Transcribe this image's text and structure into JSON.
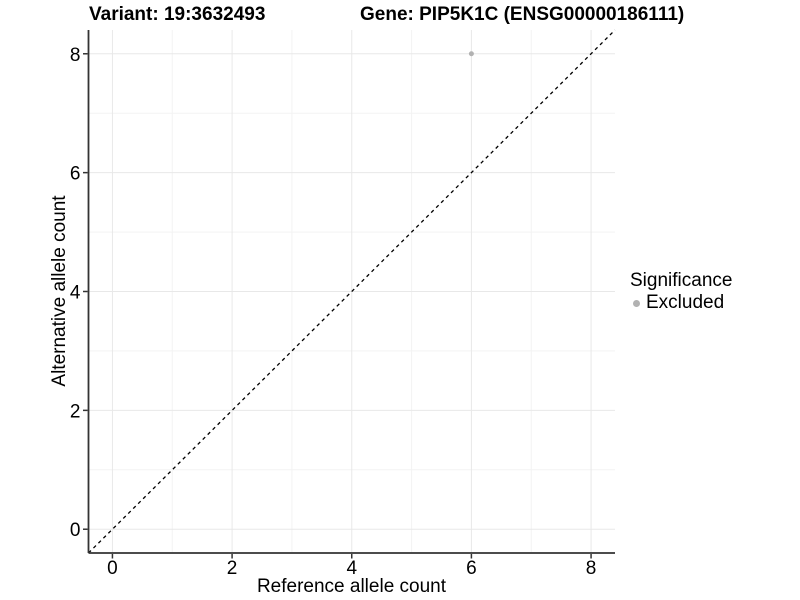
{
  "chart_data": {
    "type": "scatter",
    "titles": [
      "Variant: 19:3632493",
      "Gene: PIP5K1C (ENSG00000186111)"
    ],
    "xlabel": "Reference allele count",
    "ylabel": "Alternative allele count",
    "x_ticks": [
      0,
      2,
      4,
      6,
      8
    ],
    "y_ticks": [
      0,
      2,
      4,
      6,
      8
    ],
    "x_minor_ticks": [
      1,
      3,
      5,
      7
    ],
    "y_minor_ticks": [
      1,
      3,
      5,
      7
    ],
    "xlim": [
      -0.4,
      8.4
    ],
    "ylim": [
      -0.4,
      8.4
    ],
    "grid": "on",
    "legend_position": "right",
    "reference_line": {
      "kind": "identity y=x",
      "style": "dashed",
      "color": "#000000"
    },
    "series": [
      {
        "name": "Excluded",
        "color": "#b2b2b2",
        "points": [
          {
            "x": 6,
            "y": 8
          }
        ]
      }
    ],
    "legend": {
      "title": "Significance",
      "entries": [
        {
          "label": "Excluded",
          "color": "#b2b2b2"
        }
      ]
    }
  },
  "style": {
    "axis_line_color": "#333333",
    "tick_color": "#333333",
    "grid_major_color": "#e8e8e8",
    "grid_minor_color": "#f3f3f3",
    "text_color": "#000000",
    "background": "#ffffff"
  }
}
